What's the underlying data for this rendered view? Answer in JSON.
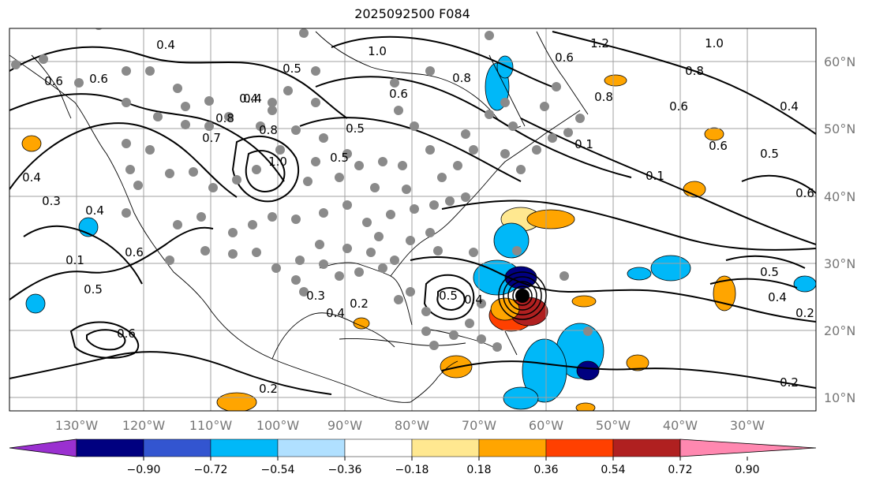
{
  "title": "2025092500 F084",
  "map": {
    "lon_labels": [
      "130°W",
      "120°W",
      "110°W",
      "100°W",
      "90°W",
      "80°W",
      "70°W",
      "60°W",
      "50°W",
      "40°W",
      "30°W"
    ],
    "lat_labels": [
      "60°N",
      "50°N",
      "40°N",
      "30°N",
      "20°N",
      "10°N"
    ],
    "contour_labels": [
      "0.4",
      "0.6",
      "1.0",
      "0.5",
      "0.8",
      "0.6",
      "0.8",
      "0.4",
      "0.5",
      "0.7",
      "0.8",
      "1.0",
      "0.6",
      "0.4",
      "0.5",
      "1.2",
      "1.0",
      "0.8",
      "0.8",
      "0.6",
      "0.4",
      "0.6",
      "0.5",
      "0.6",
      "0.4",
      "0.3",
      "0.4",
      "0.6",
      "0.1",
      "0.5",
      "0.6",
      "0.3",
      "0.2",
      "0.4",
      "0.5",
      "0.4",
      "0.2",
      "0.2",
      "0.1",
      "0.1",
      "0.4",
      "0.5",
      "0.6",
      "0.2"
    ],
    "point_color": "#8a8a8a",
    "storm_center_color": "#000000"
  },
  "colorbar": {
    "ticks": [
      "−0.90",
      "−0.72",
      "−0.54",
      "−0.36",
      "−0.18",
      "0.18",
      "0.36",
      "0.54",
      "0.72",
      "0.90"
    ],
    "colors": [
      "#9a30d0",
      "#000080",
      "#3355d0",
      "#00b8f8",
      "#b0e0ff",
      "#ffffff",
      "#ffe890",
      "#ffa500",
      "#ff4000",
      "#b02020",
      "#ff88b0"
    ]
  }
}
